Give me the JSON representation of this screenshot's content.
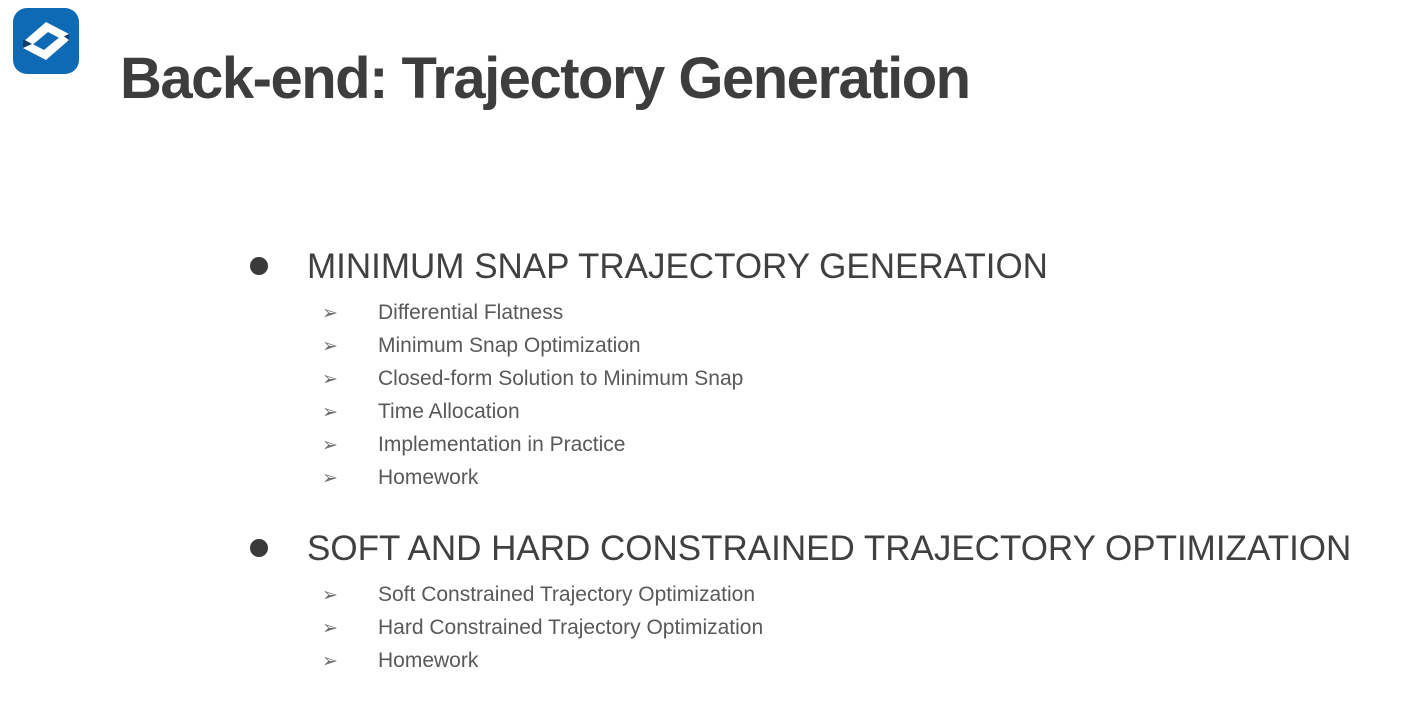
{
  "slide": {
    "title": "Back-end: Trajectory Generation",
    "bullet_glyph": "➢",
    "colors": {
      "logo_blue": "#0e6ab4",
      "logo_shadow": "#123f66",
      "title_text": "#3d3d3d",
      "heading_text": "#404040",
      "item_text": "#595959",
      "arrow": "#6e6e6e",
      "background": "#ffffff"
    },
    "sections": [
      {
        "heading": "MINIMUM SNAP TRAJECTORY GENERATION",
        "items": [
          "Differential Flatness",
          "Minimum Snap Optimization",
          "Closed-form Solution to Minimum Snap",
          "Time Allocation",
          "Implementation in Practice",
          "Homework"
        ]
      },
      {
        "heading": "SOFT AND HARD CONSTRAINED TRAJECTORY OPTIMIZATION",
        "items": [
          "Soft Constrained Trajectory Optimization",
          "Hard Constrained Trajectory Optimization",
          "Homework"
        ]
      }
    ]
  }
}
